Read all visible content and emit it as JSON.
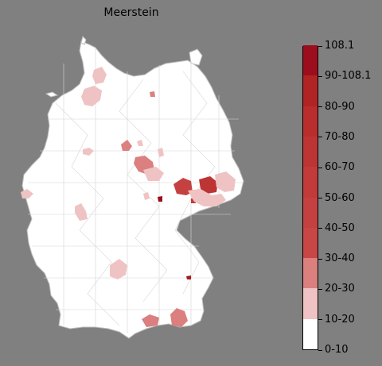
{
  "title": "Meerstein",
  "colors": {
    "background": "#808080",
    "land": "#ffffff",
    "border": "#cfcfcf",
    "outline": "#bdbdbd"
  },
  "legend": {
    "bins": [
      {
        "label": "0-10",
        "color": "#ffffff"
      },
      {
        "label": "10-20",
        "color": "#efc3c3"
      },
      {
        "label": "20-30",
        "color": "#db7f7f"
      },
      {
        "label": "30-40",
        "color": "#c84646"
      },
      {
        "label": "40-50",
        "color": "#c54141"
      },
      {
        "label": "50-60",
        "color": "#c23a3a"
      },
      {
        "label": "60-70",
        "color": "#bd3434"
      },
      {
        "label": "70-80",
        "color": "#b92d2d"
      },
      {
        "label": "80-90",
        "color": "#b12424"
      },
      {
        "label": "90-108.1",
        "color": "#a81b1b"
      },
      {
        "label": "108.1",
        "color": "#9c0e1e"
      }
    ]
  },
  "regions": [
    {
      "name": "region-north-coast",
      "bin": "10-20"
    },
    {
      "name": "region-north-hamburg",
      "bin": "10-20"
    },
    {
      "name": "region-northeast-small",
      "bin": "20-30"
    },
    {
      "name": "region-harz",
      "bin": "20-30"
    },
    {
      "name": "region-lower-saxony-east",
      "bin": "10-20"
    },
    {
      "name": "region-westphalia",
      "bin": "10-20"
    },
    {
      "name": "region-hesse-north",
      "bin": "20-30"
    },
    {
      "name": "region-hesse-central",
      "bin": "10-20"
    },
    {
      "name": "region-rhineland-west",
      "bin": "10-20"
    },
    {
      "name": "region-palatinate",
      "bin": "10-20"
    },
    {
      "name": "region-thuringia-west",
      "bin": "10-20"
    },
    {
      "name": "region-thuringia",
      "bin": "40-50"
    },
    {
      "name": "region-leipzig",
      "bin": "50-60"
    },
    {
      "name": "region-dresden",
      "bin": "60-70"
    },
    {
      "name": "region-lusatia",
      "bin": "10-20"
    },
    {
      "name": "region-erzgebirge",
      "bin": "10-20"
    },
    {
      "name": "region-vogtland",
      "bin": "108.1"
    },
    {
      "name": "region-franconia",
      "bin": "10-20"
    },
    {
      "name": "region-bavaria-east",
      "bin": "90-108.1"
    },
    {
      "name": "region-allgaeu",
      "bin": "20-30"
    },
    {
      "name": "region-upper-bavaria",
      "bin": "20-30"
    },
    {
      "name": "region-saxony-anhalt-small",
      "bin": "10-20"
    }
  ]
}
